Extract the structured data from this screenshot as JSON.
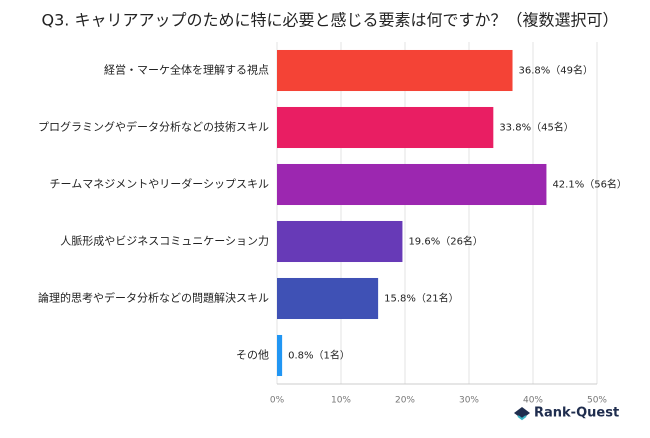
{
  "chart_data": {
    "type": "bar",
    "orientation": "horizontal",
    "title": "Q3. キャリアアップのために特に必要と感じる要素は何ですか？（複数選択可）",
    "categories": [
      "経営・マーケ全体を理解する視点",
      "プログラミングやデータ分析などの技術スキル",
      "チームマネジメントやリーダーシップスキル",
      "人脈形成やビジネスコミュニケーション力",
      "論理的思考やデータ分析などの問題解決スキル",
      "その他"
    ],
    "values": [
      36.8,
      33.8,
      42.1,
      19.6,
      15.8,
      0.8
    ],
    "value_labels": [
      "36.8%（49名）",
      "33.8%（45名）",
      "42.1%（56名）",
      "19.6%（26名）",
      "15.8%（21名）",
      "0.8%（1名）"
    ],
    "colors": [
      "#f44336",
      "#e91e63",
      "#9c27b0",
      "#673ab7",
      "#3f51b5",
      "#2196f3"
    ],
    "xlim": [
      0,
      50
    ],
    "xticks": [
      {
        "value": 0,
        "label": "0%"
      },
      {
        "value": 10,
        "label": "10%"
      },
      {
        "value": 20,
        "label": "20%"
      },
      {
        "value": 30,
        "label": "30%"
      },
      {
        "value": 40,
        "label": "40%"
      },
      {
        "value": 50,
        "label": "50%"
      }
    ],
    "grid": true
  },
  "footer": {
    "logo": "Rank-Quest"
  }
}
